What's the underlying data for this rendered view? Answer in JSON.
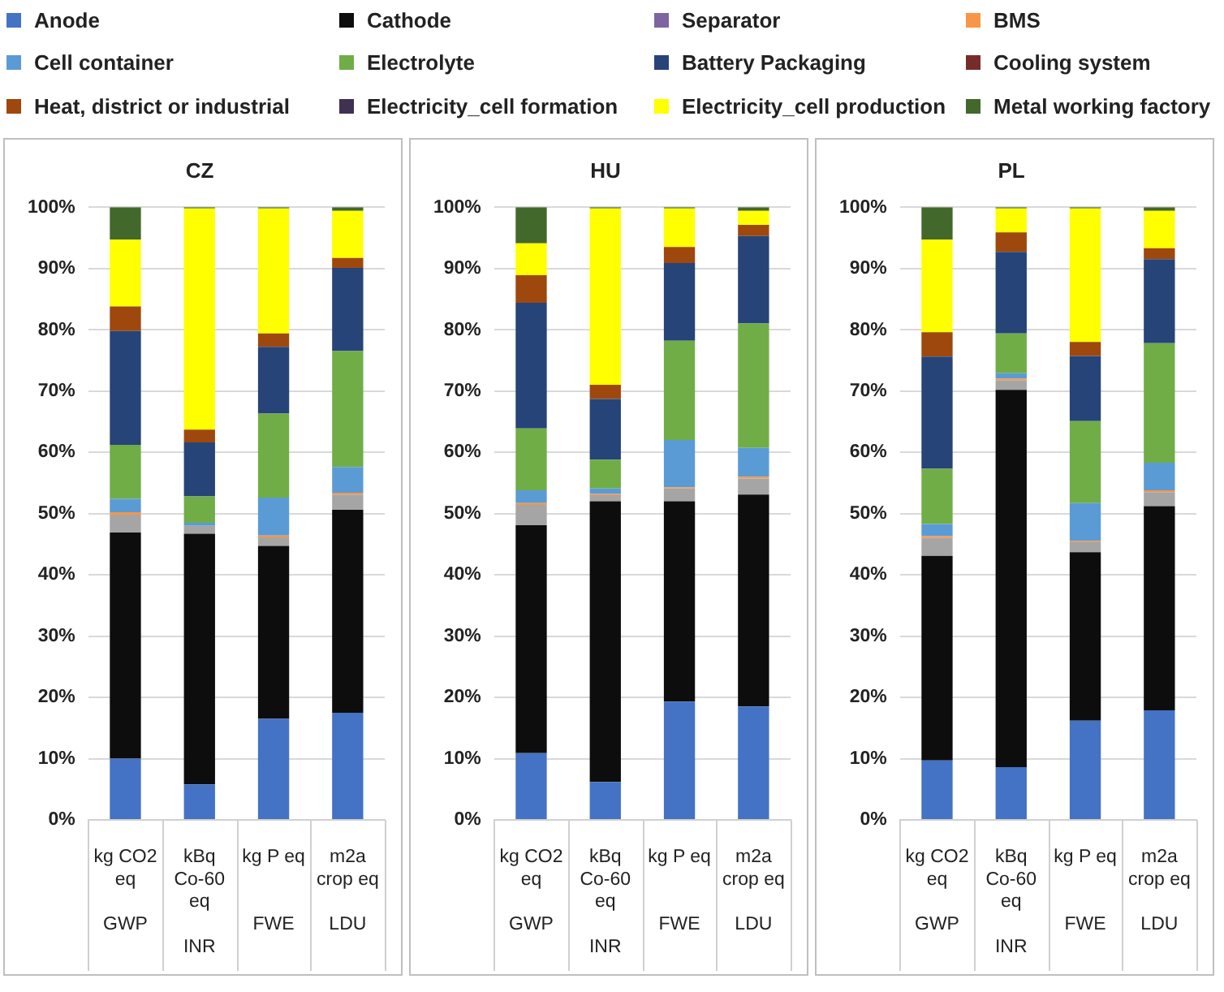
{
  "chart_data": [
    {
      "type": "bar",
      "title": "CZ",
      "stacked": true,
      "grid": "y",
      "legend": "top",
      "categories": [
        "kg CO2 eq\nGWP",
        "kBq Co-60 eq\nINR",
        "kg P eq\nFWE",
        "m2a crop eq\nLDU"
      ],
      "ylim": [
        0,
        100
      ],
      "yticks": [
        {
          "value": 0,
          "label": "0%"
        },
        {
          "value": 10,
          "label": "10%"
        },
        {
          "value": 20,
          "label": "20%"
        },
        {
          "value": 30,
          "label": "30%"
        },
        {
          "value": 40,
          "label": "40%"
        },
        {
          "value": 50,
          "label": "50%"
        },
        {
          "value": 60,
          "label": "60%"
        },
        {
          "value": 70,
          "label": "70%"
        },
        {
          "value": 80,
          "label": "80%"
        },
        {
          "value": 90,
          "label": "90%"
        },
        {
          "value": 100,
          "label": "100%"
        }
      ],
      "series": [
        {
          "name": "Anode",
          "color": "#4472c4",
          "values": [
            10.0,
            5.8,
            16.5,
            17.5
          ]
        },
        {
          "name": "Cathode",
          "color": "#0d0d0d",
          "values": [
            36.9,
            40.9,
            28.2,
            33.1
          ]
        },
        {
          "color": "#a5a5a5",
          "values": [
            2.9,
            1.3,
            1.4,
            2.5
          ]
        },
        {
          "name": "Separator",
          "color": "#8064a2",
          "values": [
            0,
            0,
            0,
            0
          ]
        },
        {
          "name": "BMS",
          "color": "#f79646",
          "values": [
            0.4,
            0,
            0.3,
            0.3
          ]
        },
        {
          "name": "Cell container",
          "color": "#5b9bd5",
          "values": [
            2.2,
            0.5,
            6.2,
            4.2
          ]
        },
        {
          "name": "Electrolyte",
          "color": "#70ad47",
          "values": [
            8.8,
            4.3,
            13.7,
            18.9
          ]
        },
        {
          "name": "Battery Packaging",
          "color": "#264478",
          "values": [
            18.6,
            8.8,
            10.9,
            13.6
          ]
        },
        {
          "name": "Cooling system",
          "color": "#772c2a",
          "values": [
            0,
            0,
            0,
            0
          ]
        },
        {
          "name": "Heat, district or industrial",
          "color": "#9e480e",
          "values": [
            4.0,
            2.1,
            2.2,
            1.6
          ]
        },
        {
          "name": "Electricity_cell formation",
          "color": "#403152",
          "values": [
            0,
            0,
            0,
            0
          ]
        },
        {
          "name": "Electricity_cell production",
          "color": "#ffff00",
          "values": [
            10.9,
            36.1,
            20.4,
            7.7
          ]
        },
        {
          "name": "Metal working factory",
          "color": "#43682b",
          "values": [
            5.3,
            0.2,
            0.2,
            0.6
          ]
        }
      ]
    },
    {
      "type": "bar",
      "title": "HU",
      "stacked": true,
      "grid": "y",
      "categories": [
        "kg CO2 eq\nGWP",
        "kBq Co-60 eq\nINR",
        "kg P eq\nFWE",
        "m2a crop eq\nLDU"
      ],
      "ylim": [
        0,
        100
      ],
      "yticks": [
        {
          "value": 0,
          "label": "0%"
        },
        {
          "value": 10,
          "label": "10%"
        },
        {
          "value": 20,
          "label": "20%"
        },
        {
          "value": 30,
          "label": "30%"
        },
        {
          "value": 40,
          "label": "40%"
        },
        {
          "value": 50,
          "label": "50%"
        },
        {
          "value": 60,
          "label": "60%"
        },
        {
          "value": 70,
          "label": "70%"
        },
        {
          "value": 80,
          "label": "80%"
        },
        {
          "value": 90,
          "label": "90%"
        },
        {
          "value": 100,
          "label": "100%"
        }
      ],
      "series": [
        {
          "color": "#4472c4",
          "values": [
            10.9,
            6.2,
            19.3,
            18.5
          ]
        },
        {
          "color": "#0d0d0d",
          "values": [
            37.2,
            45.8,
            32.7,
            34.6
          ]
        },
        {
          "color": "#a5a5a5",
          "values": [
            3.3,
            1.0,
            2.1,
            2.6
          ]
        },
        {
          "color": "#8064a2",
          "values": [
            0,
            0,
            0,
            0
          ]
        },
        {
          "color": "#f79646",
          "values": [
            0.3,
            0.2,
            0.2,
            0.3
          ]
        },
        {
          "color": "#5b9bd5",
          "values": [
            2.1,
            0.9,
            7.7,
            4.7
          ]
        },
        {
          "color": "#70ad47",
          "values": [
            10.1,
            4.7,
            16.2,
            20.3
          ]
        },
        {
          "color": "#264478",
          "values": [
            20.5,
            9.9,
            12.7,
            14.3
          ]
        },
        {
          "color": "#772c2a",
          "values": [
            0,
            0,
            0,
            0
          ]
        },
        {
          "color": "#9e480e",
          "values": [
            4.5,
            2.3,
            2.6,
            1.8
          ]
        },
        {
          "color": "#403152",
          "values": [
            0,
            0,
            0,
            0
          ]
        },
        {
          "color": "#ffff00",
          "values": [
            5.2,
            28.8,
            6.3,
            2.3
          ]
        },
        {
          "color": "#43682b",
          "values": [
            5.9,
            0.2,
            0.2,
            0.6
          ]
        }
      ]
    },
    {
      "type": "bar",
      "title": "PL",
      "stacked": true,
      "grid": "y",
      "categories": [
        "kg CO2 eq\nGWP",
        "kBq Co-60 eq\nINR",
        "kg P eq\nFWE",
        "m2a crop eq\nLDU"
      ],
      "ylim": [
        0,
        100
      ],
      "yticks": [
        {
          "value": 0,
          "label": "0%"
        },
        {
          "value": 10,
          "label": "10%"
        },
        {
          "value": 20,
          "label": "20%"
        },
        {
          "value": 30,
          "label": "30%"
        },
        {
          "value": 40,
          "label": "40%"
        },
        {
          "value": 50,
          "label": "50%"
        },
        {
          "value": 60,
          "label": "60%"
        },
        {
          "value": 70,
          "label": "70%"
        },
        {
          "value": 80,
          "label": "80%"
        },
        {
          "value": 90,
          "label": "90%"
        },
        {
          "value": 100,
          "label": "100%"
        }
      ],
      "series": [
        {
          "color": "#4472c4",
          "values": [
            9.7,
            8.6,
            16.2,
            17.9
          ]
        },
        {
          "color": "#0d0d0d",
          "values": [
            33.4,
            61.6,
            27.5,
            33.3
          ]
        },
        {
          "color": "#a5a5a5",
          "values": [
            2.9,
            1.5,
            1.6,
            2.3
          ]
        },
        {
          "color": "#8064a2",
          "values": [
            0,
            0,
            0,
            0
          ]
        },
        {
          "color": "#f79646",
          "values": [
            0.3,
            0.3,
            0.2,
            0.3
          ]
        },
        {
          "color": "#5b9bd5",
          "values": [
            2.0,
            0.9,
            6.2,
            4.5
          ]
        },
        {
          "color": "#70ad47",
          "values": [
            9.0,
            6.5,
            13.4,
            19.5
          ]
        },
        {
          "color": "#264478",
          "values": [
            18.3,
            13.3,
            10.6,
            13.7
          ]
        },
        {
          "color": "#772c2a",
          "values": [
            0,
            0,
            0,
            0
          ]
        },
        {
          "color": "#9e480e",
          "values": [
            4.0,
            3.2,
            2.3,
            1.8
          ]
        },
        {
          "color": "#403152",
          "values": [
            0,
            0,
            0,
            0
          ]
        },
        {
          "color": "#ffff00",
          "values": [
            15.1,
            3.9,
            21.8,
            6.1
          ]
        },
        {
          "color": "#43682b",
          "values": [
            5.3,
            0.2,
            0.2,
            0.6
          ]
        }
      ]
    }
  ]
}
